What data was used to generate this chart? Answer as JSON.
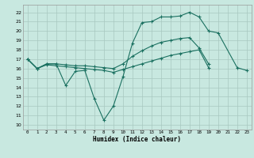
{
  "bg_color": "#c8e8e0",
  "grid_color": "#a8c8c0",
  "line_color": "#1a7060",
  "line1_x": [
    0,
    1,
    2,
    3,
    4,
    5,
    6,
    7,
    8,
    9,
    10,
    11,
    12,
    13,
    14,
    15,
    16,
    17,
    18,
    19,
    20,
    22,
    23
  ],
  "line1_y": [
    17.0,
    16.0,
    16.5,
    16.5,
    14.2,
    15.7,
    15.8,
    12.8,
    10.5,
    12.0,
    15.1,
    18.7,
    20.9,
    21.0,
    21.5,
    21.5,
    21.6,
    22.0,
    21.5,
    20.0,
    19.8,
    16.1,
    15.8
  ],
  "line2_x": [
    0,
    1,
    2,
    3,
    4,
    5,
    6,
    7,
    8,
    9,
    10,
    11,
    12,
    13,
    14,
    15,
    16,
    17,
    18,
    19
  ],
  "line2_y": [
    17.0,
    16.0,
    16.5,
    16.5,
    16.4,
    16.3,
    16.3,
    16.2,
    16.1,
    16.0,
    16.5,
    17.3,
    17.9,
    18.4,
    18.8,
    19.0,
    19.2,
    19.3,
    18.2,
    16.5
  ],
  "line3_x": [
    0,
    1,
    2,
    3,
    4,
    5,
    6,
    7,
    8,
    9,
    10,
    11,
    12,
    13,
    14,
    15,
    16,
    17,
    18,
    19
  ],
  "line3_y": [
    17.0,
    16.0,
    16.4,
    16.3,
    16.2,
    16.1,
    16.0,
    15.9,
    15.8,
    15.6,
    15.9,
    16.2,
    16.5,
    16.8,
    17.1,
    17.4,
    17.6,
    17.8,
    18.0,
    16.1
  ],
  "xlim": [
    -0.5,
    23.5
  ],
  "ylim": [
    9.5,
    22.8
  ],
  "yticks": [
    10,
    11,
    12,
    13,
    14,
    15,
    16,
    17,
    18,
    19,
    20,
    21,
    22
  ],
  "xticks": [
    0,
    1,
    2,
    3,
    4,
    5,
    6,
    7,
    8,
    9,
    10,
    11,
    12,
    13,
    14,
    15,
    16,
    17,
    18,
    19,
    20,
    21,
    22,
    23
  ],
  "xlabel": "Humidex (Indice chaleur)"
}
